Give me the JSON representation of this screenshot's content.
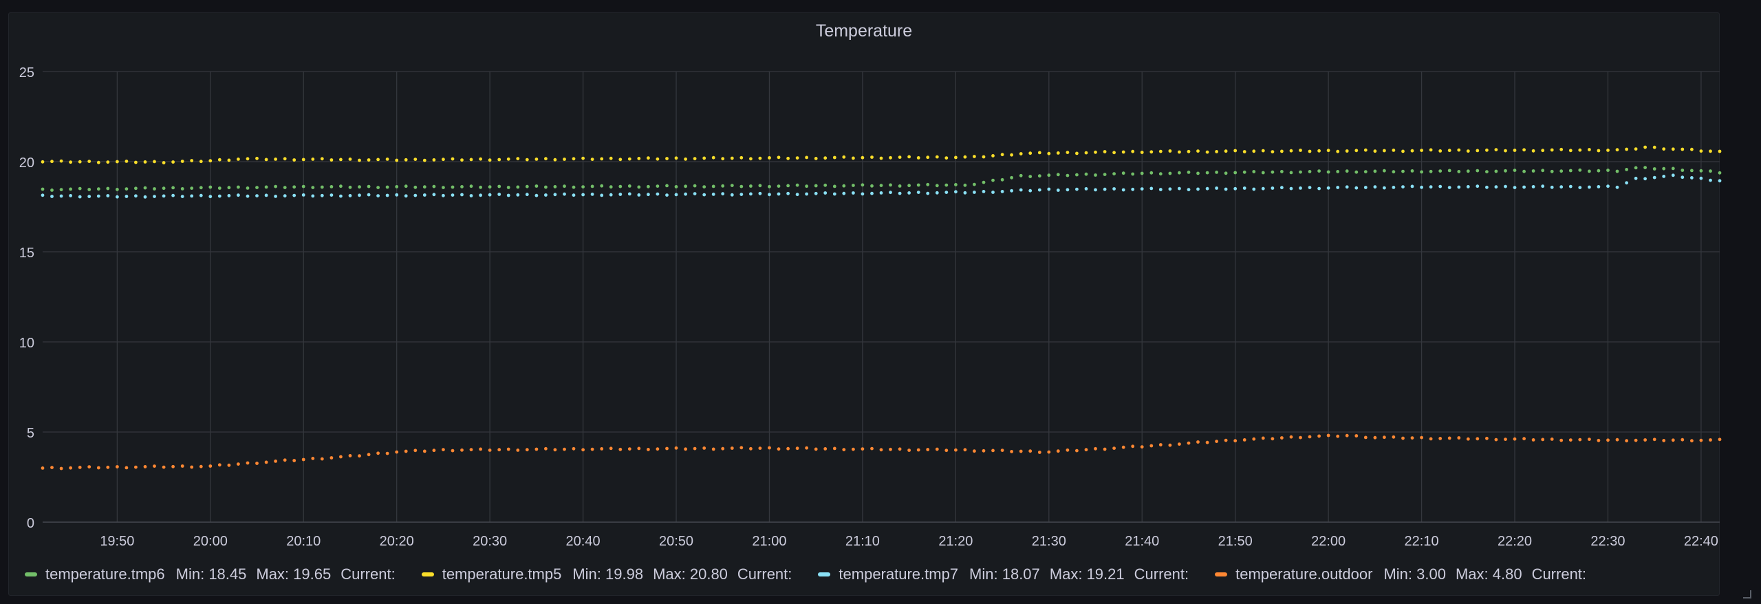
{
  "panel": {
    "title": "Temperature"
  },
  "chart_data": {
    "type": "scatter",
    "title": "Temperature",
    "ylim": [
      0,
      25
    ],
    "y_ticks": [
      "0",
      "5",
      "10",
      "15",
      "20",
      "25"
    ],
    "x_range": [
      "19:42",
      "22:42"
    ],
    "x_ticks": [
      "19:50",
      "20:00",
      "20:10",
      "20:20",
      "20:30",
      "20:40",
      "20:50",
      "21:00",
      "21:10",
      "21:20",
      "21:30",
      "21:40",
      "21:50",
      "22:00",
      "22:10",
      "22:20",
      "22:30",
      "22:40"
    ],
    "grid": true,
    "legend_placement": "bottom",
    "series": [
      {
        "name": "temperature.tmp6",
        "color": "#73bf69",
        "min_label": "Min: 18.45",
        "max_label": "Max: 19.65",
        "current_label": "Current:",
        "points": [
          [
            "19:42",
            18.45
          ],
          [
            "20:00",
            18.55
          ],
          [
            "20:10",
            18.6
          ],
          [
            "20:30",
            18.6
          ],
          [
            "21:00",
            18.65
          ],
          [
            "21:20",
            18.7
          ],
          [
            "21:22",
            18.75
          ],
          [
            "21:27",
            19.2
          ],
          [
            "21:40",
            19.35
          ],
          [
            "22:00",
            19.45
          ],
          [
            "22:31",
            19.5
          ],
          [
            "22:33",
            19.65
          ],
          [
            "22:37",
            19.6
          ],
          [
            "22:42",
            19.4
          ]
        ]
      },
      {
        "name": "temperature.tmp5",
        "color": "#fade2a",
        "min_label": "Min: 19.98",
        "max_label": "Max: 20.80",
        "current_label": "Current:",
        "points": [
          [
            "19:42",
            20.0
          ],
          [
            "19:55",
            19.98
          ],
          [
            "20:00",
            20.05
          ],
          [
            "20:03",
            20.15
          ],
          [
            "20:20",
            20.1
          ],
          [
            "20:40",
            20.15
          ],
          [
            "21:00",
            20.2
          ],
          [
            "21:22",
            20.25
          ],
          [
            "21:27",
            20.45
          ],
          [
            "21:40",
            20.55
          ],
          [
            "22:00",
            20.6
          ],
          [
            "22:32",
            20.65
          ],
          [
            "22:34",
            20.8
          ],
          [
            "22:42",
            20.55
          ]
        ]
      },
      {
        "name": "temperature.tmp7",
        "color": "#8ae1f6",
        "min_label": "Min: 18.07",
        "max_label": "Max: 19.21",
        "current_label": "Current:",
        "points": [
          [
            "19:42",
            18.1
          ],
          [
            "19:50",
            18.07
          ],
          [
            "20:00",
            18.1
          ],
          [
            "20:30",
            18.15
          ],
          [
            "21:00",
            18.2
          ],
          [
            "21:22",
            18.3
          ],
          [
            "21:30",
            18.45
          ],
          [
            "21:50",
            18.5
          ],
          [
            "22:10",
            18.6
          ],
          [
            "22:31",
            18.6
          ],
          [
            "22:33",
            19.05
          ],
          [
            "22:37",
            19.21
          ],
          [
            "22:42",
            18.95
          ]
        ]
      },
      {
        "name": "temperature.outdoor",
        "color": "#ff8833",
        "min_label": "Min: 3.00",
        "max_label": "Max: 4.80",
        "current_label": "Current:",
        "points": [
          [
            "19:42",
            3.0
          ],
          [
            "19:50",
            3.05
          ],
          [
            "20:00",
            3.1
          ],
          [
            "20:05",
            3.3
          ],
          [
            "20:15",
            3.65
          ],
          [
            "20:20",
            3.9
          ],
          [
            "20:25",
            4.0
          ],
          [
            "20:40",
            4.05
          ],
          [
            "21:00",
            4.1
          ],
          [
            "21:20",
            4.0
          ],
          [
            "21:30",
            3.9
          ],
          [
            "21:40",
            4.2
          ],
          [
            "21:50",
            4.55
          ],
          [
            "21:58",
            4.75
          ],
          [
            "22:02",
            4.8
          ],
          [
            "22:05",
            4.7
          ],
          [
            "22:20",
            4.6
          ],
          [
            "22:30",
            4.55
          ],
          [
            "22:42",
            4.55
          ]
        ]
      }
    ]
  }
}
